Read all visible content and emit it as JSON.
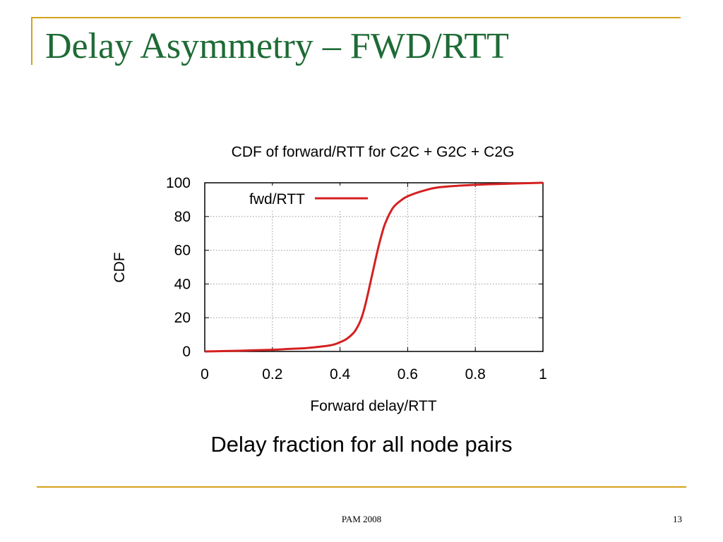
{
  "slide": {
    "title": "Delay Asymmetry – FWD/RTT",
    "caption": "Delay fraction for all node pairs",
    "footer_text": "PAM 2008",
    "page_number": "13",
    "accent_color": "#d4a21a",
    "title_color": "#1e6b35"
  },
  "chart_data": {
    "type": "line",
    "title": "CDF of forward/RTT for C2C + G2C + C2G",
    "xlabel": "Forward delay/RTT",
    "ylabel": "CDF",
    "xlim": [
      0,
      1
    ],
    "ylim": [
      0,
      100
    ],
    "xticks": [
      "0",
      "0.2",
      "0.4",
      "0.6",
      "0.8",
      "1"
    ],
    "yticks": [
      "0",
      "20",
      "40",
      "60",
      "80",
      "100"
    ],
    "grid": true,
    "legend_position": "top-left",
    "series": [
      {
        "name": "fwd/RTT",
        "color": "#d42020",
        "x": [
          0,
          0.05,
          0.1,
          0.15,
          0.2,
          0.25,
          0.3,
          0.35,
          0.38,
          0.4,
          0.42,
          0.44,
          0.45,
          0.46,
          0.47,
          0.48,
          0.49,
          0.5,
          0.51,
          0.52,
          0.53,
          0.54,
          0.55,
          0.56,
          0.58,
          0.6,
          0.65,
          0.7,
          0.8,
          0.9,
          1.0
        ],
        "y": [
          0,
          0.2,
          0.4,
          0.7,
          1,
          1.5,
          2,
          3,
          4,
          5.5,
          7.5,
          11,
          14,
          18,
          24,
          32,
          41,
          50,
          59,
          67,
          74,
          79,
          83,
          86,
          89.5,
          92,
          95.5,
          97.5,
          98.8,
          99.5,
          100
        ]
      }
    ]
  }
}
